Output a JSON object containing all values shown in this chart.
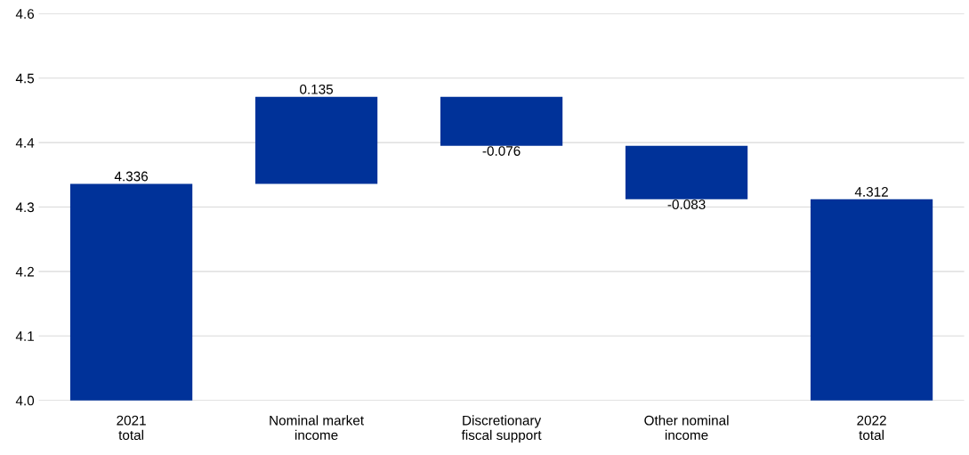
{
  "chart_data": {
    "type": "bar",
    "categories": [
      "2021\ntotal",
      "Nominal market\nincome",
      "Discretionary\nfiscal support",
      "Other nominal\nincome",
      "2022\ntotal"
    ],
    "values": [
      4.336,
      0.135,
      -0.076,
      -0.083,
      4.312
    ],
    "base": [
      null,
      4.336,
      4.471,
      4.395,
      null
    ],
    "color": "#003299",
    "ylim": [
      4.0,
      4.6
    ],
    "yticks": [
      {
        "value": 4.0,
        "label": "4.0"
      },
      {
        "value": 4.1,
        "label": "4.1"
      },
      {
        "value": 4.2,
        "label": "4.2"
      },
      {
        "value": 4.3,
        "label": "4.3"
      },
      {
        "value": 4.4,
        "label": "4.4"
      },
      {
        "value": 4.5,
        "label": "4.5"
      },
      {
        "value": 4.6,
        "label": "4.6"
      }
    ],
    "grid": "y",
    "data_labels": true
  }
}
